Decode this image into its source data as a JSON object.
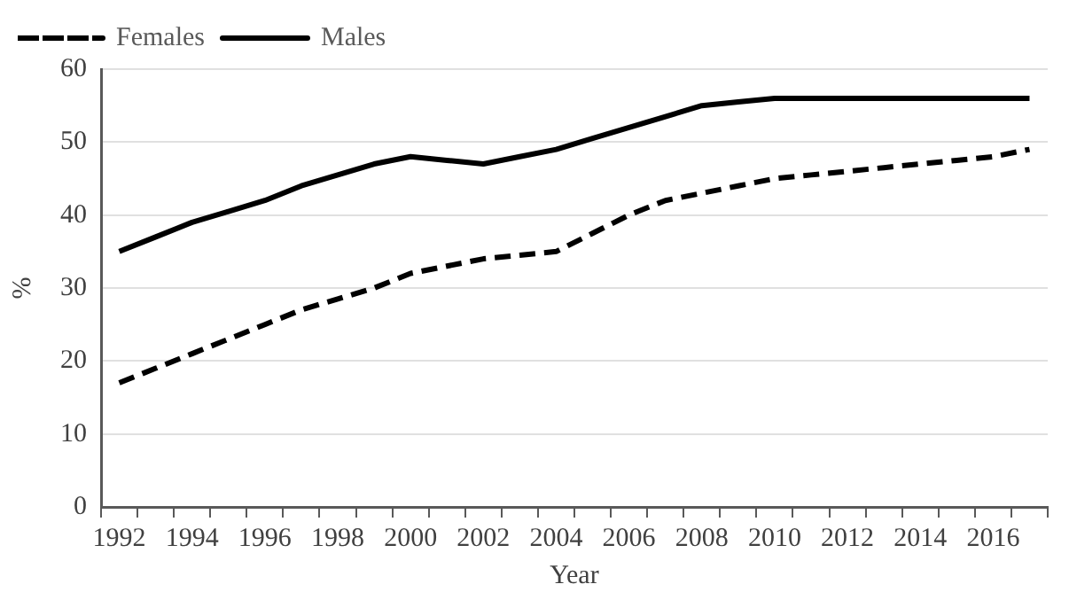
{
  "chart_data": {
    "type": "line",
    "xlabel": "Year",
    "ylabel": "%",
    "categories": [
      "1992",
      null,
      "1994",
      null,
      "1996",
      null,
      "1998",
      null,
      "2000",
      null,
      "2002",
      null,
      "2004",
      null,
      "2006",
      null,
      "2008",
      null,
      "2010",
      null,
      "2012",
      null,
      "2014",
      null,
      "2016",
      null
    ],
    "series": [
      {
        "name": "Females",
        "color": "#000000",
        "line_style": "dashed",
        "values": [
          17,
          19,
          21,
          23,
          25,
          27,
          28.5,
          30,
          32,
          33,
          34,
          34.5,
          35,
          37.5,
          40,
          42,
          43,
          44,
          45,
          45.5,
          46,
          46.5,
          47,
          47.5,
          48,
          49
        ]
      },
      {
        "name": "Males",
        "color": "#000000",
        "line_style": "solid",
        "values": [
          35,
          37,
          39,
          40.5,
          42,
          44,
          45.5,
          47,
          48,
          47.5,
          47,
          48,
          49,
          50.5,
          52,
          53.5,
          55,
          55.5,
          56,
          56,
          56,
          56,
          56,
          56,
          56,
          56
        ]
      }
    ],
    "ylim": [
      0,
      60
    ],
    "yticks": [
      0,
      10,
      20,
      30,
      40,
      50,
      60
    ],
    "grid": "y",
    "legend": "top left",
    "marker": "none"
  }
}
